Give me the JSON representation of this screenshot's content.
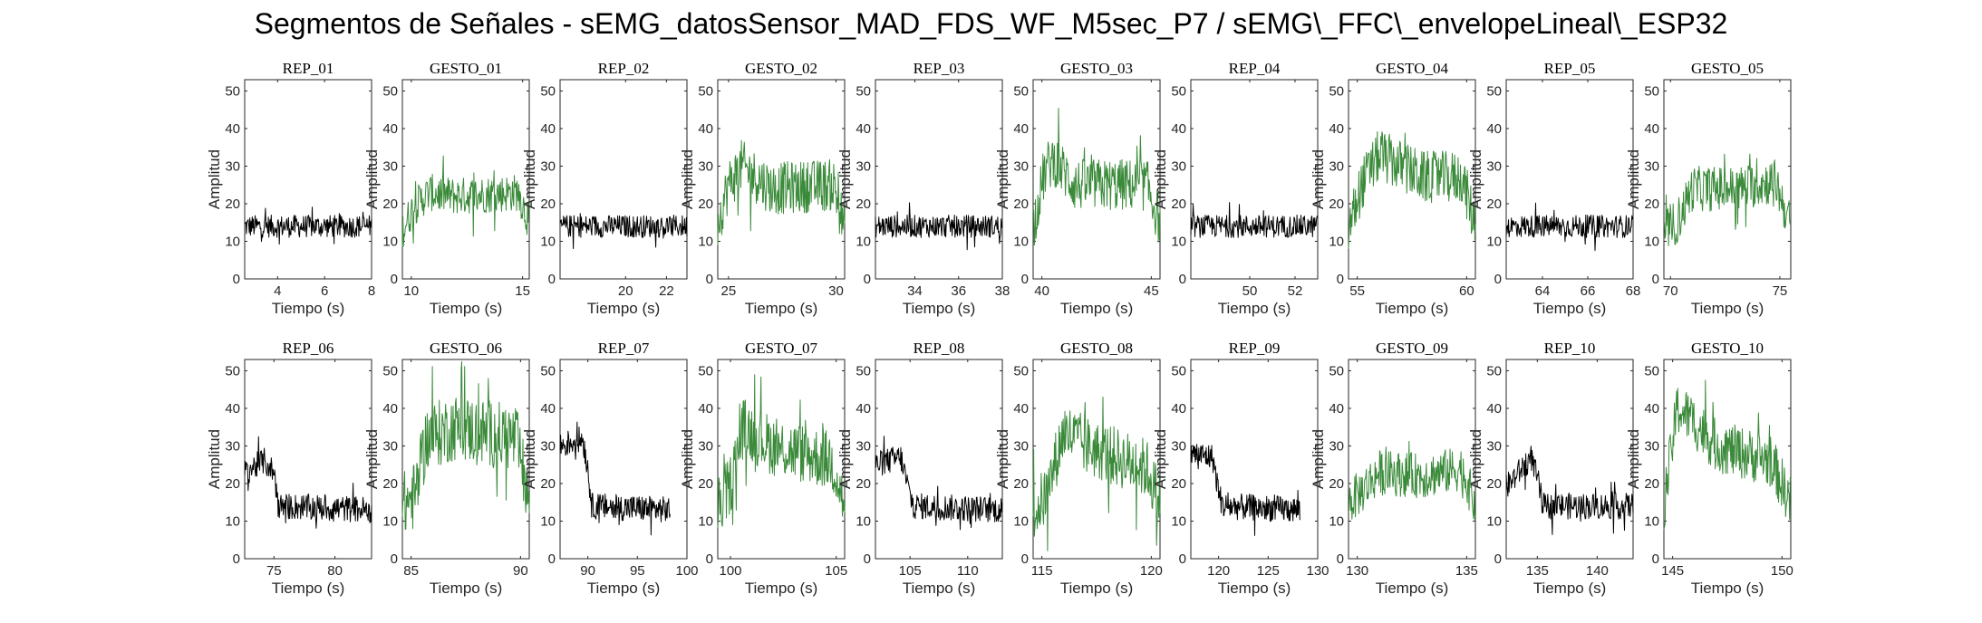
{
  "figure": {
    "title": "Segmentos de Señales - sEMG_datosSensor_MAD_FDS_WF_M5sec_P7 / sEMG\\_FFC\\_envelopeLineal\\_ESP32"
  },
  "colors": {
    "rep": "#000000",
    "gesto": "#3a8a3a",
    "axis": "#262626"
  },
  "chart_data": [
    {
      "type": "line",
      "title": "REP_01",
      "xlabel": "Tiempo (s)",
      "ylabel": "Amplitud",
      "xlim": [
        2.6,
        8
      ],
      "ylim": [
        0,
        53
      ],
      "xticks": [
        4,
        6,
        8
      ],
      "yticks": [
        0,
        10,
        20,
        30,
        40,
        50
      ],
      "series": [
        {
          "name": "",
          "kind": "rep",
          "start": 2.6,
          "end": 8,
          "levels": [
            [
              2.6,
              14
            ],
            [
              8,
              14
            ]
          ],
          "noise": 3
        }
      ]
    },
    {
      "type": "line",
      "title": "GESTO_01",
      "xlabel": "Tiempo (s)",
      "ylabel": "Amplitud",
      "xlim": [
        9.6,
        15.3
      ],
      "ylim": [
        0,
        53
      ],
      "xticks": [
        10,
        15
      ],
      "yticks": [
        0,
        10,
        20,
        30,
        40,
        50
      ],
      "series": [
        {
          "name": "",
          "kind": "gesto",
          "start": 9.6,
          "end": 15.3,
          "levels": [
            [
              9.6,
              13
            ],
            [
              10.1,
              19
            ],
            [
              10.8,
              23
            ],
            [
              12,
              22
            ],
            [
              14.8,
              23
            ],
            [
              15.3,
              15
            ]
          ],
          "noise": 5
        }
      ]
    },
    {
      "type": "line",
      "title": "REP_02",
      "xlabel": "Tiempo (s)",
      "ylabel": "Amplitud",
      "xlim": [
        16.8,
        23
      ],
      "ylim": [
        0,
        53
      ],
      "xticks": [
        20,
        22
      ],
      "yticks": [
        0,
        10,
        20,
        30,
        40,
        50
      ],
      "series": [
        {
          "name": "",
          "kind": "rep",
          "start": 16.8,
          "end": 23,
          "levels": [
            [
              16.8,
              14
            ],
            [
              23,
              14
            ]
          ],
          "noise": 3
        }
      ]
    },
    {
      "type": "line",
      "title": "GESTO_02",
      "xlabel": "Tiempo (s)",
      "ylabel": "Amplitud",
      "xlim": [
        24.5,
        30.4
      ],
      "ylim": [
        0,
        53
      ],
      "xticks": [
        25,
        30
      ],
      "yticks": [
        0,
        10,
        20,
        30,
        40,
        50
      ],
      "series": [
        {
          "name": "",
          "kind": "gesto",
          "start": 24.5,
          "end": 30.4,
          "levels": [
            [
              24.5,
              15
            ],
            [
              25,
              25
            ],
            [
              25.6,
              30
            ],
            [
              27,
              24
            ],
            [
              29.9,
              25
            ],
            [
              30.4,
              13
            ]
          ],
          "noise": 7
        }
      ]
    },
    {
      "type": "line",
      "title": "REP_03",
      "xlabel": "Tiempo (s)",
      "ylabel": "Amplitud",
      "xlim": [
        32.2,
        38
      ],
      "ylim": [
        0,
        53
      ],
      "xticks": [
        34,
        36,
        38
      ],
      "yticks": [
        0,
        10,
        20,
        30,
        40,
        50
      ],
      "series": [
        {
          "name": "",
          "kind": "rep",
          "start": 32.2,
          "end": 38,
          "levels": [
            [
              32.2,
              14
            ],
            [
              38,
              14
            ]
          ],
          "noise": 3
        }
      ]
    },
    {
      "type": "line",
      "title": "GESTO_03",
      "xlabel": "Tiempo (s)",
      "ylabel": "Amplitud",
      "xlim": [
        39.6,
        45.4
      ],
      "ylim": [
        0,
        53
      ],
      "xticks": [
        40,
        45
      ],
      "yticks": [
        0,
        10,
        20,
        30,
        40,
        50
      ],
      "series": [
        {
          "name": "",
          "kind": "gesto",
          "start": 39.6,
          "end": 45.4,
          "levels": [
            [
              39.6,
              14
            ],
            [
              40.1,
              28
            ],
            [
              40.5,
              32
            ],
            [
              41.5,
              25
            ],
            [
              44.8,
              25
            ],
            [
              45.4,
              15
            ]
          ],
          "noise": 7
        }
      ]
    },
    {
      "type": "line",
      "title": "REP_04",
      "xlabel": "Tiempo (s)",
      "ylabel": "Amplitud",
      "xlim": [
        47.4,
        53
      ],
      "ylim": [
        0,
        53
      ],
      "xticks": [
        50,
        52
      ],
      "yticks": [
        0,
        10,
        20,
        30,
        40,
        50
      ],
      "series": [
        {
          "name": "",
          "kind": "rep",
          "start": 47.4,
          "end": 53,
          "levels": [
            [
              47.4,
              14
            ],
            [
              53,
              14
            ]
          ],
          "noise": 3
        }
      ]
    },
    {
      "type": "line",
      "title": "GESTO_04",
      "xlabel": "Tiempo (s)",
      "ylabel": "Amplitud",
      "xlim": [
        54.6,
        60.4
      ],
      "ylim": [
        0,
        53
      ],
      "xticks": [
        55,
        60
      ],
      "yticks": [
        0,
        10,
        20,
        30,
        40,
        50
      ],
      "series": [
        {
          "name": "",
          "kind": "gesto",
          "start": 54.6,
          "end": 60.4,
          "levels": [
            [
              54.6,
              13
            ],
            [
              55.2,
              25
            ],
            [
              56,
              33
            ],
            [
              58,
              27
            ],
            [
              59.8,
              27
            ],
            [
              60.4,
              14
            ]
          ],
          "noise": 7
        }
      ]
    },
    {
      "type": "line",
      "title": "REP_05",
      "xlabel": "Tiempo (s)",
      "ylabel": "Amplitud",
      "xlim": [
        62.4,
        68
      ],
      "ylim": [
        0,
        53
      ],
      "xticks": [
        64,
        66,
        68
      ],
      "yticks": [
        0,
        10,
        20,
        30,
        40,
        50
      ],
      "series": [
        {
          "name": "",
          "kind": "rep",
          "start": 62.4,
          "end": 68,
          "levels": [
            [
              62.4,
              14
            ],
            [
              68,
              14
            ]
          ],
          "noise": 3
        }
      ]
    },
    {
      "type": "line",
      "title": "GESTO_05",
      "xlabel": "Tiempo (s)",
      "ylabel": "Amplitud",
      "xlim": [
        69.7,
        75.5
      ],
      "ylim": [
        0,
        53
      ],
      "xticks": [
        70,
        75
      ],
      "yticks": [
        0,
        10,
        20,
        30,
        40,
        50
      ],
      "series": [
        {
          "name": "",
          "kind": "gesto",
          "start": 69.7,
          "end": 75.5,
          "levels": [
            [
              69.7,
              13
            ],
            [
              70.3,
              15
            ],
            [
              71,
              24
            ],
            [
              73,
              24
            ],
            [
              74.8,
              26
            ],
            [
              75.5,
              14
            ]
          ],
          "noise": 6
        }
      ]
    },
    {
      "type": "line",
      "title": "REP_06",
      "xlabel": "Tiempo (s)",
      "ylabel": "Amplitud",
      "xlim": [
        72.6,
        83
      ],
      "ylim": [
        0,
        53
      ],
      "xticks": [
        75,
        80
      ],
      "yticks": [
        0,
        10,
        20,
        30,
        40,
        50
      ],
      "series": [
        {
          "name": "",
          "kind": "rep",
          "start": 72.6,
          "end": 83,
          "levels": [
            [
              72.6,
              23
            ],
            [
              74.2,
              26
            ],
            [
              75,
              23
            ],
            [
              75.4,
              14
            ],
            [
              83,
              13
            ]
          ],
          "noise": 3.5
        }
      ]
    },
    {
      "type": "line",
      "title": "GESTO_06",
      "xlabel": "Tiempo (s)",
      "ylabel": "Amplitud",
      "xlim": [
        84.6,
        90.4
      ],
      "ylim": [
        0,
        53
      ],
      "xticks": [
        85,
        90
      ],
      "yticks": [
        0,
        10,
        20,
        30,
        40,
        50
      ],
      "series": [
        {
          "name": "",
          "kind": "gesto",
          "start": 84.6,
          "end": 90.4,
          "levels": [
            [
              84.6,
              14
            ],
            [
              85.2,
              17
            ],
            [
              85.7,
              32
            ],
            [
              87,
              35
            ],
            [
              89.8,
              32
            ],
            [
              90.4,
              15
            ]
          ],
          "noise": 9
        }
      ]
    },
    {
      "type": "line",
      "title": "REP_07",
      "xlabel": "Tiempo (s)",
      "ylabel": "Amplitud",
      "xlim": [
        87.2,
        100
      ],
      "ylim": [
        0,
        53
      ],
      "xticks": [
        90,
        95,
        100
      ],
      "yticks": [
        0,
        10,
        20,
        30,
        40,
        50
      ],
      "series": [
        {
          "name": "",
          "kind": "rep",
          "start": 87.2,
          "end": 98.3,
          "levels": [
            [
              87.2,
              30
            ],
            [
              89.5,
              32
            ],
            [
              90,
              24
            ],
            [
              90.4,
              14
            ],
            [
              98.3,
              13
            ]
          ],
          "noise": 3.5
        }
      ]
    },
    {
      "type": "line",
      "title": "GESTO_07",
      "xlabel": "Tiempo (s)",
      "ylabel": "Amplitud",
      "xlim": [
        99.4,
        105.4
      ],
      "ylim": [
        0,
        53
      ],
      "xticks": [
        100,
        105
      ],
      "yticks": [
        0,
        10,
        20,
        30,
        40,
        50
      ],
      "series": [
        {
          "name": "",
          "kind": "gesto",
          "start": 99.4,
          "end": 105.4,
          "levels": [
            [
              99.4,
              13
            ],
            [
              100,
              20
            ],
            [
              100.6,
              35
            ],
            [
              102,
              30
            ],
            [
              104.8,
              26
            ],
            [
              105.4,
              14
            ]
          ],
          "noise": 8
        }
      ]
    },
    {
      "type": "line",
      "title": "REP_08",
      "xlabel": "Tiempo (s)",
      "ylabel": "Amplitud",
      "xlim": [
        102,
        113
      ],
      "ylim": [
        0,
        53
      ],
      "xticks": [
        105,
        110
      ],
      "yticks": [
        0,
        10,
        20,
        30,
        40,
        50
      ],
      "series": [
        {
          "name": "",
          "kind": "rep",
          "start": 102,
          "end": 113,
          "levels": [
            [
              102,
              25
            ],
            [
              104.2,
              27
            ],
            [
              104.9,
              18
            ],
            [
              105.3,
              14
            ],
            [
              113,
              13
            ]
          ],
          "noise": 3.5
        }
      ]
    },
    {
      "type": "line",
      "title": "GESTO_08",
      "xlabel": "Tiempo (s)",
      "ylabel": "Amplitud",
      "xlim": [
        114.6,
        120.4
      ],
      "ylim": [
        0,
        53
      ],
      "xticks": [
        115,
        120
      ],
      "yticks": [
        0,
        10,
        20,
        30,
        40,
        50
      ],
      "series": [
        {
          "name": "",
          "kind": "gesto",
          "start": 114.6,
          "end": 120.4,
          "levels": [
            [
              114.6,
              12
            ],
            [
              115.2,
              17
            ],
            [
              116,
              34
            ],
            [
              117,
              30
            ],
            [
              119.8,
              24
            ],
            [
              120.4,
              15
            ]
          ],
          "noise": 8
        }
      ]
    },
    {
      "type": "line",
      "title": "REP_09",
      "xlabel": "Tiempo (s)",
      "ylabel": "Amplitud",
      "xlim": [
        117.2,
        130
      ],
      "ylim": [
        0,
        53
      ],
      "xticks": [
        120,
        125,
        130
      ],
      "yticks": [
        0,
        10,
        20,
        30,
        40,
        50
      ],
      "series": [
        {
          "name": "",
          "kind": "rep",
          "start": 117.2,
          "end": 128.2,
          "levels": [
            [
              117.2,
              28
            ],
            [
              119.4,
              27
            ],
            [
              120,
              18
            ],
            [
              120.4,
              14
            ],
            [
              128.2,
              13
            ]
          ],
          "noise": 3.5
        }
      ]
    },
    {
      "type": "line",
      "title": "GESTO_09",
      "xlabel": "Tiempo (s)",
      "ylabel": "Amplitud",
      "xlim": [
        129.6,
        135.4
      ],
      "ylim": [
        0,
        53
      ],
      "xticks": [
        130,
        135
      ],
      "yticks": [
        0,
        10,
        20,
        30,
        40,
        50
      ],
      "series": [
        {
          "name": "",
          "kind": "gesto",
          "start": 129.6,
          "end": 135.4,
          "levels": [
            [
              129.6,
              15
            ],
            [
              130.2,
              18
            ],
            [
              131,
              23
            ],
            [
              133,
              22
            ],
            [
              134.8,
              24
            ],
            [
              135.4,
              14
            ]
          ],
          "noise": 6
        }
      ]
    },
    {
      "type": "line",
      "title": "REP_10",
      "xlabel": "Tiempo (s)",
      "ylabel": "Amplitud",
      "xlim": [
        132.4,
        143
      ],
      "ylim": [
        0,
        53
      ],
      "xticks": [
        135,
        140
      ],
      "yticks": [
        0,
        10,
        20,
        30,
        40,
        50
      ],
      "series": [
        {
          "name": "",
          "kind": "rep",
          "start": 132.4,
          "end": 143,
          "levels": [
            [
              132.4,
              19
            ],
            [
              134.5,
              27
            ],
            [
              135.1,
              20
            ],
            [
              135.5,
              14
            ],
            [
              143,
              14
            ]
          ],
          "noise": 3.5
        }
      ]
    },
    {
      "type": "line",
      "title": "GESTO_10",
      "xlabel": "Tiempo (s)",
      "ylabel": "Amplitud",
      "xlim": [
        144.6,
        150.4
      ],
      "ylim": [
        0,
        53
      ],
      "xticks": [
        145,
        150
      ],
      "yticks": [
        0,
        10,
        20,
        30,
        40,
        50
      ],
      "series": [
        {
          "name": "",
          "kind": "gesto",
          "start": 144.6,
          "end": 150.4,
          "levels": [
            [
              144.6,
              14
            ],
            [
              145.2,
              40
            ],
            [
              145.7,
              38
            ],
            [
              147,
              30
            ],
            [
              149.5,
              26
            ],
            [
              150.4,
              15
            ]
          ],
          "noise": 7
        }
      ]
    }
  ]
}
